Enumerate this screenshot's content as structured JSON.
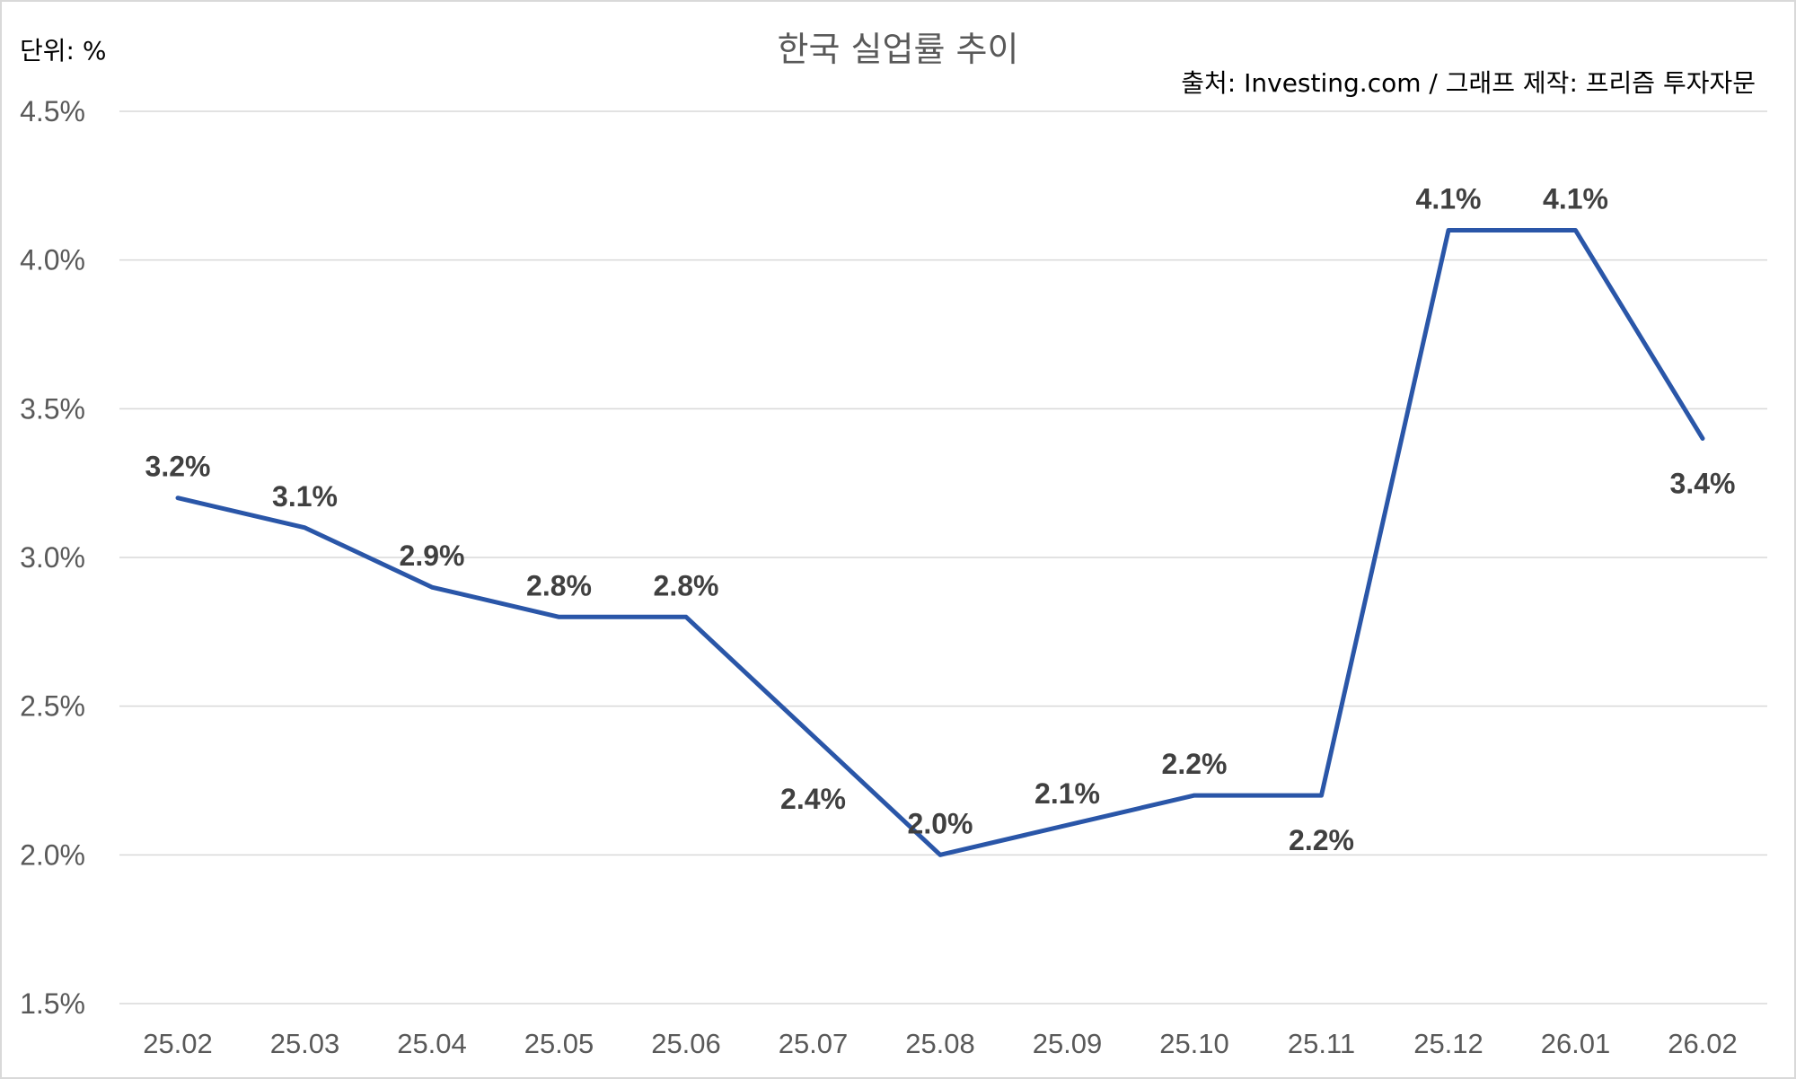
{
  "chart_data": {
    "type": "line",
    "title": "한국 실업률 추이",
    "unit_label": "단위: %",
    "source": "출처: Investing.com / 그래프 제작: 프리즘 투자자문",
    "categories": [
      "25.02",
      "25.03",
      "25.04",
      "25.05",
      "25.06",
      "25.07",
      "25.08",
      "25.09",
      "25.10",
      "25.11",
      "25.12",
      "26.01",
      "26.02"
    ],
    "series": [
      {
        "values": [
          3.2,
          3.1,
          2.9,
          2.8,
          2.8,
          2.4,
          2.0,
          2.1,
          2.2,
          2.2,
          4.1,
          4.1,
          3.4
        ]
      }
    ],
    "data_labels": [
      "3.2%",
      "3.1%",
      "2.9%",
      "2.8%",
      "2.8%",
      "2.4%",
      "2.0%",
      "2.1%",
      "2.2%",
      "2.2%",
      "4.1%",
      "4.1%",
      "3.4%"
    ],
    "y_ticks": [
      "1.5%",
      "2.0%",
      "2.5%",
      "3.0%",
      "3.5%",
      "4.0%",
      "4.5%"
    ],
    "ylim": [
      1.5,
      4.5
    ],
    "grid": true,
    "colors": {
      "line": "#2a56a8",
      "grid": "#d9d9d9"
    }
  }
}
